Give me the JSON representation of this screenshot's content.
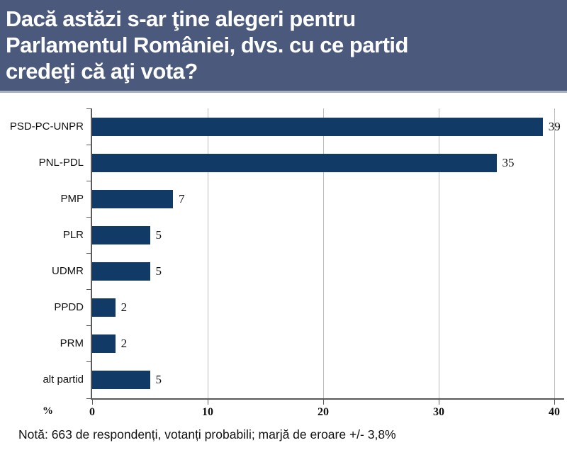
{
  "header": {
    "title_lines": [
      "Dacă astăzi s-ar ţine alegeri pentru",
      "Parlamentul României, dvs. cu ce partid",
      "credeţi că aţi vota?"
    ],
    "bg_color": "#4b5a7c",
    "text_color": "#ffffff"
  },
  "chart_data": {
    "type": "bar",
    "orientation": "horizontal",
    "title": "Dacă astăzi s-ar ţine alegeri pentru Parlamentul României, dvs. cu ce partid credeţi că aţi vota?",
    "categories": [
      "PSD-PC-UNPR",
      "PNL-PDL",
      "PMP",
      "PLR",
      "UDMR",
      "PPDD",
      "PRM",
      "alt partid"
    ],
    "values": [
      39,
      35,
      7,
      5,
      5,
      2,
      2,
      5
    ],
    "data_labels": [
      "39",
      "35",
      "7",
      "5",
      "5",
      "2",
      "2",
      "5"
    ],
    "xlabel": "%",
    "ylabel": "",
    "xlim": [
      0,
      40
    ],
    "xticks": [
      0,
      10,
      20,
      30,
      40
    ],
    "grid": true,
    "legend": false,
    "bar_color": "#123a66",
    "axis_color": "#5a5a5a",
    "gridline_color": "#bcbcbc"
  },
  "footer": {
    "note": "Notă: 663 de respondenți, votanți probabili; marjă de eroare +/- 3,8%"
  }
}
